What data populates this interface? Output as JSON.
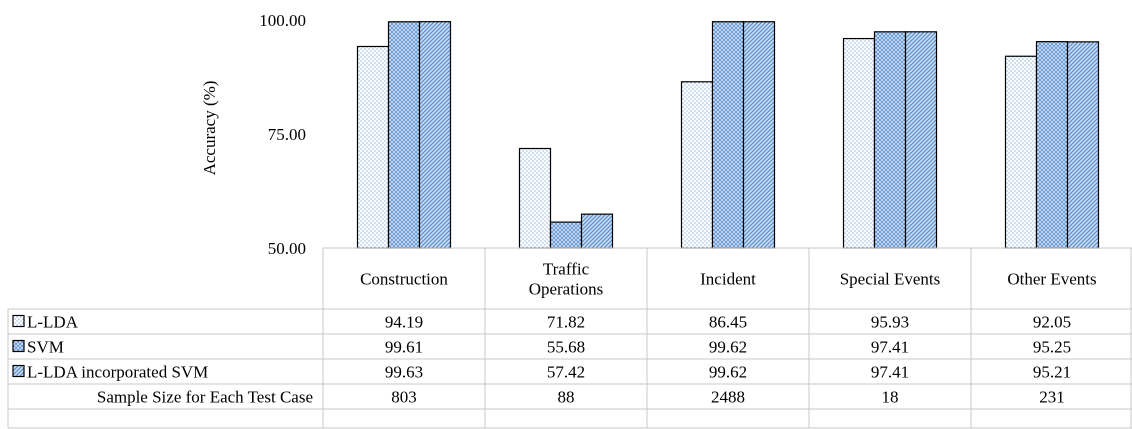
{
  "chart_data": {
    "type": "bar",
    "title": "",
    "xlabel": "",
    "ylabel": "Accuracy (%)",
    "ylim": [
      50,
      100
    ],
    "yticks": [
      "100.00",
      "75.00",
      "50.00"
    ],
    "grid": false,
    "legend": "in-table",
    "categories": [
      {
        "lines": [
          "Construction"
        ]
      },
      {
        "lines": [
          "Traffic",
          "Operations"
        ]
      },
      {
        "lines": [
          "Incident"
        ]
      },
      {
        "lines": [
          "Special Events"
        ]
      },
      {
        "lines": [
          "Other Events"
        ]
      }
    ],
    "series": [
      {
        "name": "L-LDA",
        "values": [
          94.19,
          71.82,
          86.45,
          95.93,
          92.05
        ],
        "labels": [
          "94.19",
          "71.82",
          "86.45",
          "95.93",
          "92.05"
        ],
        "pattern": "dots"
      },
      {
        "name": "SVM",
        "values": [
          99.61,
          55.68,
          99.62,
          97.41,
          95.25
        ],
        "labels": [
          "99.61",
          "55.68",
          "99.62",
          "97.41",
          "95.25"
        ],
        "pattern": "crosshatch"
      },
      {
        "name": "L-LDA incorporated SVM",
        "values": [
          99.63,
          57.42,
          99.62,
          97.41,
          95.21
        ],
        "labels": [
          "99.63",
          "57.42",
          "99.62",
          "97.41",
          "95.21"
        ],
        "pattern": "diagonal"
      }
    ],
    "extra_row": {
      "name": "Sample Size for Each Test Case",
      "values": [
        "803",
        "88",
        "2488",
        "18",
        "231"
      ]
    },
    "colors": {
      "pattern": "#5b8fd0",
      "fill": "#ffffff",
      "edge": "#000000",
      "table_line": "#c8c8c8"
    }
  }
}
